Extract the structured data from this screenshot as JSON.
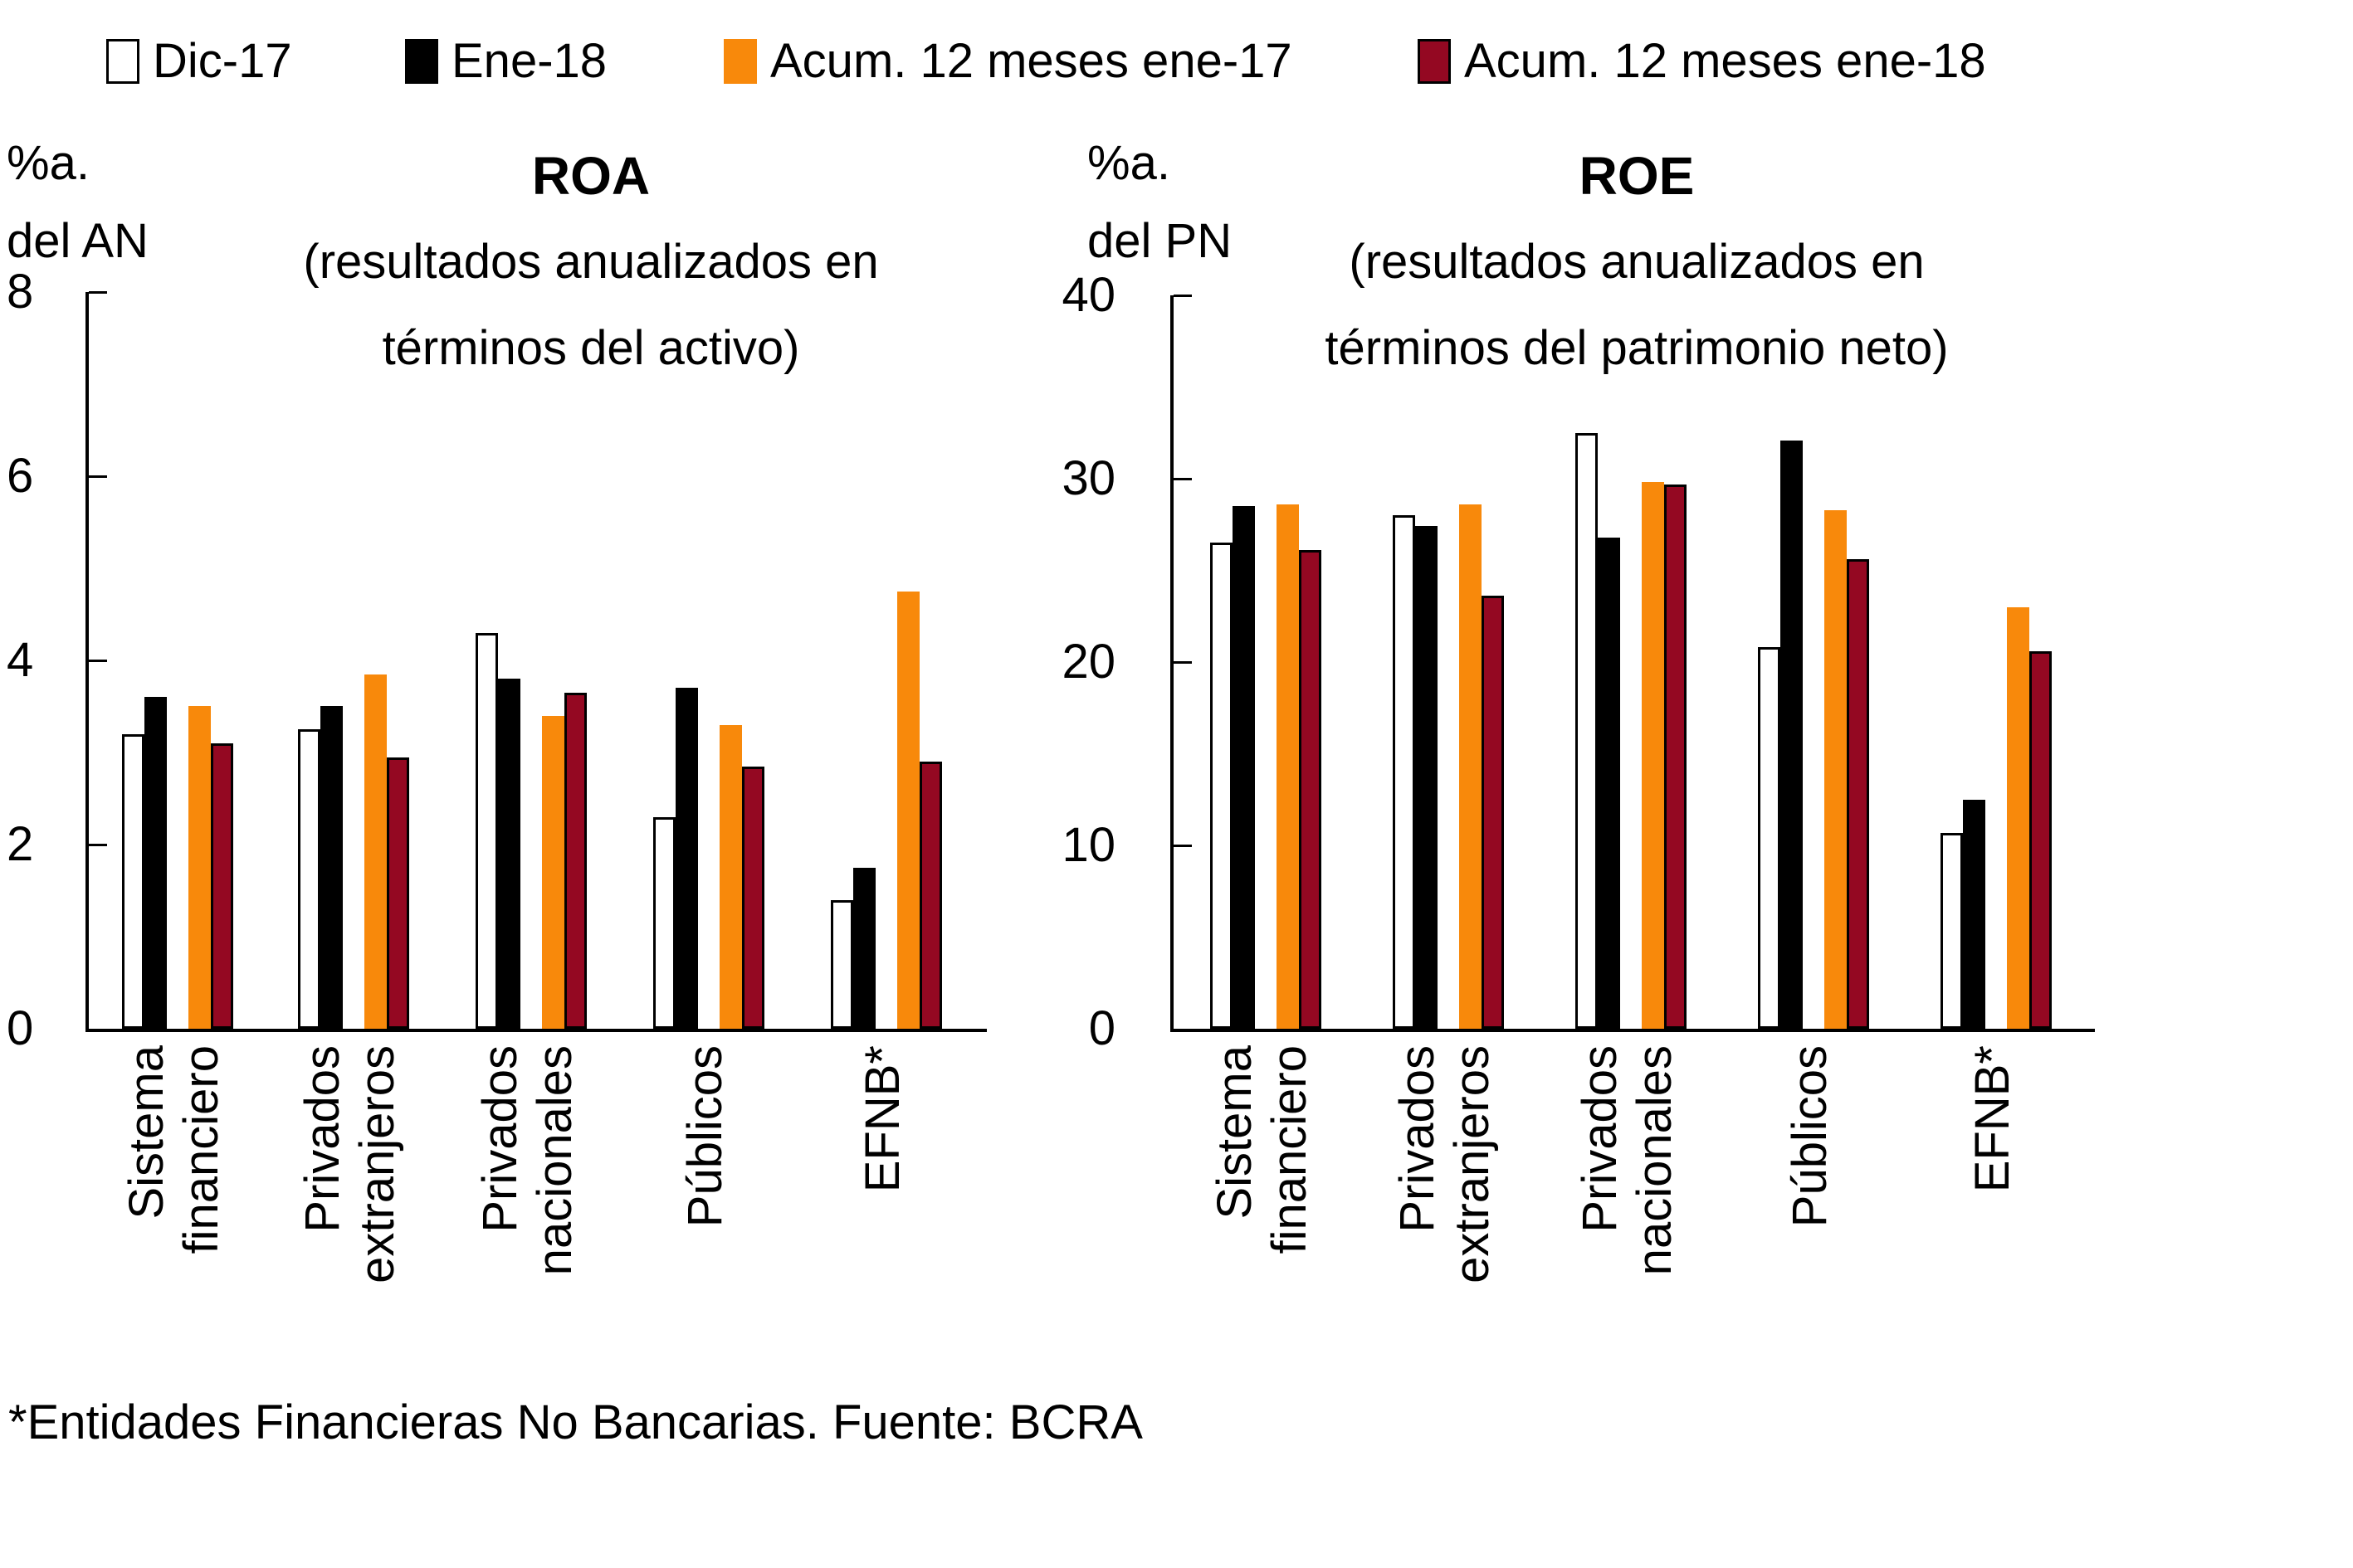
{
  "legend": {
    "items": [
      {
        "label": "Dic-17",
        "fill": "#FFFFFF",
        "border": "#000000"
      },
      {
        "label": "Ene-18",
        "fill": "#000000",
        "border": null
      },
      {
        "label": "Acum. 12 meses ene-17",
        "fill": "#F8890B",
        "border": null
      },
      {
        "label": "Acum. 12 meses ene-18",
        "fill": "#940822",
        "border": "#000000"
      }
    ]
  },
  "footnote": "*Entidades Financieras No Bancarias. Fuente: BCRA",
  "chart_data": [
    {
      "type": "bar",
      "title": "ROA",
      "subtitle": "(resultados anualizados en términos del activo)",
      "subtitle_lines": [
        "(resultados anualizados en",
        "términos del activo)"
      ],
      "ylabel": "%a. del AN",
      "ylabel_lines": [
        "%a.",
        "del AN"
      ],
      "ylim": [
        0,
        8
      ],
      "yticks": [
        0,
        2,
        4,
        6,
        8
      ],
      "grid": false,
      "legend_position": "top-shared",
      "categories": [
        "Sistema financiero",
        "Privados extranjeros",
        "Privados nacionales",
        "Públicos",
        "EFNB*"
      ],
      "category_lines": [
        [
          "Sistema",
          "financiero"
        ],
        [
          "Privados",
          "extranjeros"
        ],
        [
          "Privados",
          "nacionales"
        ],
        [
          "Públicos"
        ],
        [
          "EFNB*"
        ]
      ],
      "series": [
        {
          "name": "Dic-17",
          "color": "#FFFFFF",
          "border": "#000000",
          "values": [
            3.2,
            3.25,
            4.3,
            2.3,
            1.4
          ]
        },
        {
          "name": "Ene-18",
          "color": "#000000",
          "border": null,
          "values": [
            3.6,
            3.5,
            3.8,
            3.7,
            1.75
          ]
        },
        {
          "name": "Acum. 12 meses ene-17",
          "color": "#F8890B",
          "border": null,
          "values": [
            3.5,
            3.85,
            3.4,
            3.3,
            4.75
          ]
        },
        {
          "name": "Acum. 12 meses ene-18",
          "color": "#940822",
          "border": "#000000",
          "values": [
            3.1,
            2.95,
            3.65,
            2.85,
            2.9
          ]
        }
      ]
    },
    {
      "type": "bar",
      "title": "ROE",
      "subtitle": "(resultados anualizados en términos del patrimonio neto)",
      "subtitle_lines": [
        "(resultados anualizados en",
        "términos del patrimonio neto)"
      ],
      "ylabel": "%a. del PN",
      "ylabel_lines": [
        "%a.",
        "del PN"
      ],
      "ylim": [
        0,
        40
      ],
      "yticks": [
        0,
        10,
        20,
        30,
        40
      ],
      "grid": false,
      "legend_position": "top-shared",
      "categories": [
        "Sistema financiero",
        "Privados extranjeros",
        "Privados nacionales",
        "Públicos",
        "EFNB*"
      ],
      "category_lines": [
        [
          "Sistema",
          "financiero"
        ],
        [
          "Privados",
          "extranjeros"
        ],
        [
          "Privados",
          "nacionales"
        ],
        [
          "Públicos"
        ],
        [
          "EFNB*"
        ]
      ],
      "series": [
        {
          "name": "Dic-17",
          "color": "#FFFFFF",
          "border": "#000000",
          "values": [
            26.5,
            28.0,
            32.5,
            20.8,
            10.7
          ]
        },
        {
          "name": "Ene-18",
          "color": "#000000",
          "border": null,
          "values": [
            28.5,
            27.4,
            26.8,
            32.1,
            12.5
          ]
        },
        {
          "name": "Acum. 12 meses ene-17",
          "color": "#F8890B",
          "border": null,
          "values": [
            28.6,
            28.6,
            29.8,
            28.3,
            23.0
          ]
        },
        {
          "name": "Acum. 12 meses ene-18",
          "color": "#940822",
          "border": "#000000",
          "values": [
            26.1,
            23.6,
            29.7,
            25.6,
            20.6
          ]
        }
      ]
    }
  ]
}
